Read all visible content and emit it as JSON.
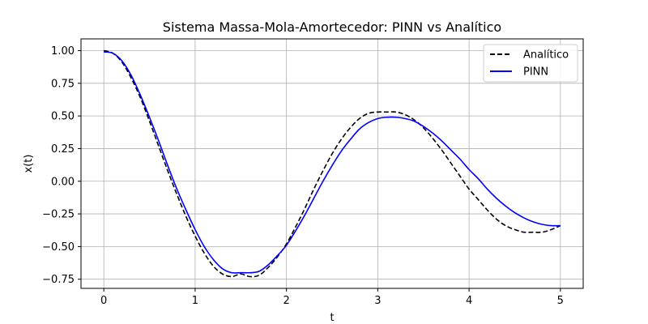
{
  "chart_data": {
    "type": "line",
    "title": "Sistema Massa-Mola-Amortecedor: PINN vs Analítico",
    "xlabel": "t",
    "ylabel": "x(t)",
    "xlim": [
      -0.25,
      5.25
    ],
    "ylim": [
      -0.82,
      1.09
    ],
    "xticks": [
      0,
      1,
      2,
      3,
      4,
      5
    ],
    "xtick_labels": [
      "0",
      "1",
      "2",
      "3",
      "4",
      "5"
    ],
    "yticks": [
      -0.75,
      -0.5,
      -0.25,
      0.0,
      0.25,
      0.5,
      0.75,
      1.0
    ],
    "ytick_labels": [
      "−0.75",
      "−0.50",
      "−0.25",
      "0.00",
      "0.25",
      "0.50",
      "0.75",
      "1.00"
    ],
    "grid": true,
    "legend_position": "top-right",
    "x": [
      0,
      0.1,
      0.2,
      0.3,
      0.4,
      0.5,
      0.6,
      0.7,
      0.8,
      0.9,
      1.0,
      1.1,
      1.2,
      1.3,
      1.4,
      1.5,
      1.6,
      1.7,
      1.8,
      1.9,
      2.0,
      2.1,
      2.2,
      2.3,
      2.4,
      2.5,
      2.6,
      2.7,
      2.8,
      2.9,
      3.0,
      3.1,
      3.2,
      3.3,
      3.4,
      3.5,
      3.6,
      3.7,
      3.8,
      3.9,
      4.0,
      4.1,
      4.2,
      4.3,
      4.4,
      4.5,
      4.6,
      4.7,
      4.8,
      4.9,
      5.0
    ],
    "series": [
      {
        "name": "Analítico",
        "color": "#000000",
        "dash": "dashed",
        "values": [
          1.0,
          0.98,
          0.91,
          0.79,
          0.64,
          0.46,
          0.27,
          0.08,
          -0.1,
          -0.27,
          -0.42,
          -0.55,
          -0.65,
          -0.71,
          -0.73,
          -0.71,
          -0.73,
          -0.72,
          -0.66,
          -0.58,
          -0.48,
          -0.35,
          -0.21,
          -0.06,
          0.08,
          0.21,
          0.32,
          0.41,
          0.48,
          0.52,
          0.53,
          0.53,
          0.53,
          0.51,
          0.47,
          0.41,
          0.33,
          0.24,
          0.14,
          0.04,
          -0.06,
          -0.14,
          -0.22,
          -0.29,
          -0.34,
          -0.37,
          -0.39,
          -0.39,
          -0.39,
          -0.37,
          -0.34
        ]
      },
      {
        "name": "PINN",
        "color": "#0000ff",
        "dash": "solid",
        "values": [
          0.99,
          0.98,
          0.92,
          0.81,
          0.66,
          0.49,
          0.31,
          0.12,
          -0.06,
          -0.22,
          -0.37,
          -0.5,
          -0.6,
          -0.67,
          -0.7,
          -0.7,
          -0.7,
          -0.69,
          -0.64,
          -0.57,
          -0.49,
          -0.38,
          -0.26,
          -0.13,
          0.0,
          0.12,
          0.23,
          0.32,
          0.4,
          0.45,
          0.48,
          0.49,
          0.49,
          0.48,
          0.46,
          0.42,
          0.37,
          0.31,
          0.24,
          0.17,
          0.09,
          0.02,
          -0.06,
          -0.13,
          -0.19,
          -0.24,
          -0.28,
          -0.31,
          -0.33,
          -0.34,
          -0.34
        ]
      }
    ]
  }
}
